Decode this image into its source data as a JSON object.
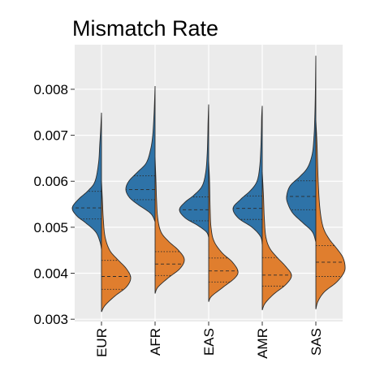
{
  "chart_data": {
    "type": "split-violin",
    "title": "Mismatch Rate",
    "xlabel": "",
    "ylabel": "",
    "ylim": [
      0.00295,
      0.00897
    ],
    "y_ticks": [
      {
        "value": 0.003,
        "label": "0.003"
      },
      {
        "value": 0.004,
        "label": "0.004"
      },
      {
        "value": 0.005,
        "label": "0.005"
      },
      {
        "value": 0.006,
        "label": "0.006"
      },
      {
        "value": 0.007,
        "label": "0.007"
      },
      {
        "value": 0.008,
        "label": "0.008"
      }
    ],
    "categories": [
      "EUR",
      "AFR",
      "EAS",
      "AMR",
      "SAS"
    ],
    "grid": true,
    "legend": "none",
    "colors": {
      "background": "#ebebeb",
      "grid": "#ffffff",
      "series_a": "#2e73a8",
      "series_b": "#e07e2e",
      "outline": "#2b2b2b"
    },
    "series": [
      {
        "side": "left",
        "color": "#2e73a8",
        "groups": [
          {
            "category": "EUR",
            "min": 0.00452,
            "max": 0.00749,
            "q1": 0.00518,
            "median": 0.00542,
            "q3": 0.00578,
            "profile": [
              [
                0.00452,
                0
              ],
              [
                0.00468,
                0.05
              ],
              [
                0.0049,
                0.2
              ],
              [
                0.0051,
                0.55
              ],
              [
                0.00525,
                0.85
              ],
              [
                0.00542,
                1.0
              ],
              [
                0.0056,
                0.8
              ],
              [
                0.0058,
                0.45
              ],
              [
                0.006,
                0.22
              ],
              [
                0.0064,
                0.1
              ],
              [
                0.0068,
                0.06
              ],
              [
                0.0071,
                0.03
              ],
              [
                0.00749,
                0
              ]
            ]
          },
          {
            "category": "AFR",
            "min": 0.00512,
            "max": 0.00807,
            "q1": 0.0056,
            "median": 0.00582,
            "q3": 0.00612,
            "profile": [
              [
                0.00512,
                0
              ],
              [
                0.0053,
                0.15
              ],
              [
                0.0055,
                0.6
              ],
              [
                0.00565,
                0.88
              ],
              [
                0.00582,
                1.0
              ],
              [
                0.006,
                0.9
              ],
              [
                0.0062,
                0.6
              ],
              [
                0.0064,
                0.3
              ],
              [
                0.0067,
                0.15
              ],
              [
                0.007,
                0.08
              ],
              [
                0.0074,
                0.04
              ],
              [
                0.0077,
                0.02
              ],
              [
                0.00807,
                0
              ]
            ]
          },
          {
            "category": "EAS",
            "min": 0.00478,
            "max": 0.00767,
            "q1": 0.00514,
            "median": 0.00538,
            "q3": 0.00566,
            "profile": [
              [
                0.00478,
                0
              ],
              [
                0.0049,
                0.08
              ],
              [
                0.00505,
                0.4
              ],
              [
                0.0052,
                0.8
              ],
              [
                0.00538,
                1.0
              ],
              [
                0.00555,
                0.8
              ],
              [
                0.0057,
                0.5
              ],
              [
                0.0059,
                0.22
              ],
              [
                0.0062,
                0.1
              ],
              [
                0.0066,
                0.05
              ],
              [
                0.007,
                0.03
              ],
              [
                0.0073,
                0.02
              ],
              [
                0.00767,
                0
              ]
            ]
          },
          {
            "category": "AMR",
            "min": 0.00462,
            "max": 0.00764,
            "q1": 0.00517,
            "median": 0.00541,
            "q3": 0.00568,
            "profile": [
              [
                0.00462,
                0
              ],
              [
                0.0048,
                0.06
              ],
              [
                0.005,
                0.35
              ],
              [
                0.0052,
                0.82
              ],
              [
                0.00541,
                1.0
              ],
              [
                0.0056,
                0.75
              ],
              [
                0.0058,
                0.4
              ],
              [
                0.006,
                0.18
              ],
              [
                0.0063,
                0.09
              ],
              [
                0.0067,
                0.05
              ],
              [
                0.0071,
                0.03
              ],
              [
                0.0074,
                0.02
              ],
              [
                0.00764,
                0
              ]
            ]
          },
          {
            "category": "SAS",
            "min": 0.00468,
            "max": 0.00873,
            "q1": 0.00538,
            "median": 0.00567,
            "q3": 0.00601,
            "profile": [
              [
                0.00468,
                0
              ],
              [
                0.0049,
                0.12
              ],
              [
                0.0051,
                0.45
              ],
              [
                0.0053,
                0.78
              ],
              [
                0.0055,
                0.95
              ],
              [
                0.00567,
                1.0
              ],
              [
                0.0059,
                0.88
              ],
              [
                0.0061,
                0.55
              ],
              [
                0.0063,
                0.28
              ],
              [
                0.0066,
                0.12
              ],
              [
                0.007,
                0.06
              ],
              [
                0.0073,
                0.04
              ],
              [
                0.0078,
                0.02
              ],
              [
                0.00873,
                0
              ]
            ]
          }
        ]
      },
      {
        "side": "right",
        "color": "#e07e2e",
        "groups": [
          {
            "category": "EUR",
            "min": 0.00316,
            "max": 0.006,
            "q1": 0.00365,
            "median": 0.00393,
            "q3": 0.00428,
            "profile": [
              [
                0.00316,
                0
              ],
              [
                0.0033,
                0.12
              ],
              [
                0.0035,
                0.45
              ],
              [
                0.0037,
                0.85
              ],
              [
                0.0039,
                1.0
              ],
              [
                0.0041,
                0.85
              ],
              [
                0.0043,
                0.55
              ],
              [
                0.0045,
                0.28
              ],
              [
                0.0048,
                0.12
              ],
              [
                0.0052,
                0.06
              ],
              [
                0.0056,
                0.03
              ],
              [
                0.006,
                0
              ]
            ]
          },
          {
            "category": "AFR",
            "min": 0.00356,
            "max": 0.00652,
            "q1": 0.00395,
            "median": 0.0042,
            "q3": 0.00447,
            "profile": [
              [
                0.00356,
                0
              ],
              [
                0.0037,
                0.1
              ],
              [
                0.0039,
                0.45
              ],
              [
                0.0041,
                0.85
              ],
              [
                0.0043,
                1.0
              ],
              [
                0.0045,
                0.8
              ],
              [
                0.0047,
                0.45
              ],
              [
                0.0049,
                0.2
              ],
              [
                0.0052,
                0.09
              ],
              [
                0.0056,
                0.05
              ],
              [
                0.006,
                0.03
              ],
              [
                0.00652,
                0
              ]
            ]
          },
          {
            "category": "EAS",
            "min": 0.00338,
            "max": 0.00643,
            "q1": 0.00381,
            "median": 0.00405,
            "q3": 0.00433,
            "profile": [
              [
                0.00338,
                0
              ],
              [
                0.0035,
                0.1
              ],
              [
                0.0037,
                0.5
              ],
              [
                0.0039,
                0.9
              ],
              [
                0.00405,
                1.0
              ],
              [
                0.00425,
                0.8
              ],
              [
                0.00445,
                0.45
              ],
              [
                0.0047,
                0.18
              ],
              [
                0.005,
                0.08
              ],
              [
                0.0054,
                0.05
              ],
              [
                0.006,
                0.03
              ],
              [
                0.00643,
                0
              ]
            ]
          },
          {
            "category": "AMR",
            "min": 0.0032,
            "max": 0.0062,
            "q1": 0.00372,
            "median": 0.00396,
            "q3": 0.00434,
            "profile": [
              [
                0.0032,
                0
              ],
              [
                0.00335,
                0.1
              ],
              [
                0.00355,
                0.4
              ],
              [
                0.00375,
                0.8
              ],
              [
                0.00395,
                1.0
              ],
              [
                0.00415,
                0.8
              ],
              [
                0.00435,
                0.5
              ],
              [
                0.00455,
                0.25
              ],
              [
                0.0048,
                0.12
              ],
              [
                0.0052,
                0.07
              ],
              [
                0.0057,
                0.04
              ],
              [
                0.0062,
                0
              ]
            ]
          },
          {
            "category": "SAS",
            "min": 0.00322,
            "max": 0.00733,
            "q1": 0.00393,
            "median": 0.00424,
            "q3": 0.0046,
            "profile": [
              [
                0.00322,
                0
              ],
              [
                0.0034,
                0.08
              ],
              [
                0.0036,
                0.3
              ],
              [
                0.0038,
                0.7
              ],
              [
                0.004,
                0.95
              ],
              [
                0.00415,
                1.0
              ],
              [
                0.00435,
                0.92
              ],
              [
                0.00455,
                0.7
              ],
              [
                0.00475,
                0.45
              ],
              [
                0.005,
                0.25
              ],
              [
                0.0054,
                0.14
              ],
              [
                0.006,
                0.08
              ],
              [
                0.0068,
                0.04
              ],
              [
                0.00733,
                0
              ]
            ]
          }
        ]
      }
    ]
  }
}
